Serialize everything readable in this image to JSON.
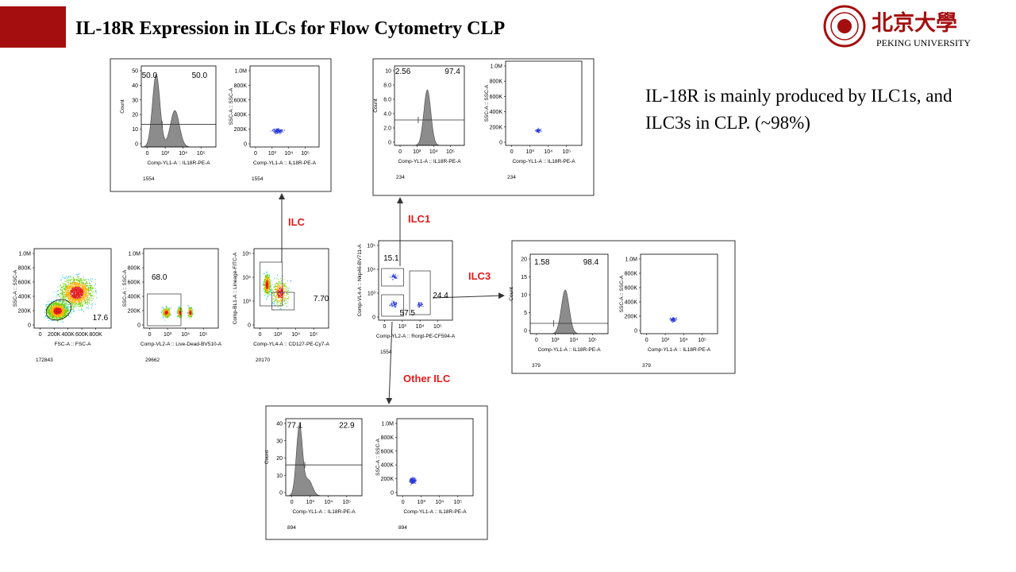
{
  "header": {
    "title": "IL-18R Expression in ILCs for Flow Cytometry CLP",
    "logo_chinese": "北京大學",
    "logo_english": "PEKING UNIVERSITY"
  },
  "note": [
    "IL-18R is mainly produced by ILC1s, and",
    "ILC3s in CLP. (~98%)"
  ],
  "arrows": [
    "ILC",
    "ILC1",
    "ILC3",
    "Other ILC"
  ],
  "plots": [
    {
      "y_label": "SSC-A :: SSC-A",
      "y_ticks": [
        "1.0M",
        "800K",
        "600K",
        "400K",
        "200K",
        "0"
      ],
      "x_ticks": [
        "0",
        "200K",
        "400K",
        "600K",
        "800K"
      ],
      "x_label": "FSC-A :: FSC-A",
      "gates": [
        "17.6"
      ],
      "count": "172843"
    },
    {
      "y_label": "SSC-A :: SSC-A",
      "y_ticks": [
        "1.0M",
        "800K",
        "600K",
        "400K",
        "200K",
        "0"
      ],
      "x_ticks": [
        "0",
        "10³",
        "10⁴",
        "10⁵"
      ],
      "x_label": "Comp-VL2-A :: Live-Dead-BV510-A",
      "gates": [
        "68.0"
      ],
      "count": "29662"
    },
    {
      "y_label": "Comp-BL1-A :: Lineage-FITC-A",
      "y_ticks": [
        "10⁵",
        "10⁴",
        "10³",
        "0"
      ],
      "x_ticks": [
        "0",
        "10³",
        "10⁴",
        "10⁵"
      ],
      "x_label": "Comp-YL4-A :: CD127-PE-Cy7-A",
      "gates": [
        "7.70"
      ],
      "count": "20170"
    },
    {
      "y_label": "Comp-VL4-A :: Nkp46-BV711-A",
      "y_ticks": [
        "10⁵",
        "10⁴",
        "10³",
        "0"
      ],
      "x_ticks": [
        "0",
        "10³",
        "10⁴",
        "10⁵"
      ],
      "x_label": "Comp-YL2-A :: Rorgt-PE-CF594-A",
      "gates": [
        "15.1",
        "24.4",
        "57.5"
      ],
      "count": "1554"
    },
    {
      "y_label": "Count",
      "y_ticks": [
        "50",
        "40",
        "30",
        "20",
        "10",
        "0"
      ],
      "x_ticks": [
        "0",
        "10³",
        "10⁴",
        "10⁵"
      ],
      "x_label": "Comp-YL1-A :: IL18R-PE-A",
      "gates": [
        "50.0",
        "50.0"
      ],
      "count": "1554"
    },
    {
      "y_label": "SSC-A :: SSC-A",
      "y_ticks": [
        "1.0M",
        "800K",
        "600K",
        "400K",
        "200K",
        "0"
      ],
      "x_ticks": [
        "0",
        "10³",
        "10⁴",
        "10⁵"
      ],
      "x_label": "Comp-YL1-A :: IL18R-PE-A",
      "gates": [],
      "count": "1554"
    },
    {
      "y_label": "Count",
      "y_ticks": [
        "10",
        "8.0",
        "6.0",
        "4.0",
        "2.0",
        "0"
      ],
      "x_ticks": [
        "0",
        "10³",
        "10⁴",
        "10⁵"
      ],
      "x_label": "Comp-YL1-A :: IL18R-PE-A",
      "gates": [
        "2.56",
        "97.4"
      ],
      "count": "234"
    },
    {
      "y_label": "SSC-A :: SSC-A",
      "y_ticks": [
        "1.0M",
        "800K",
        "600K",
        "400K",
        "200K",
        "0"
      ],
      "x_ticks": [
        "0",
        "10³",
        "10⁴",
        "10⁵"
      ],
      "x_label": "Comp-YL1-A :: IL18R-PE-A",
      "gates": [],
      "count": "234"
    },
    {
      "y_label": "Count",
      "y_ticks": [
        "20",
        "15",
        "10",
        "5",
        "0"
      ],
      "x_ticks": [
        "0",
        "10³",
        "10⁴",
        "10⁵"
      ],
      "x_label": "Comp-YL1-A :: IL18R-PE-A",
      "gates": [
        "1.58",
        "98.4"
      ],
      "count": "379"
    },
    {
      "y_label": "SSC-A :: SSC-A",
      "y_ticks": [
        "1.0M",
        "800K",
        "600K",
        "400K",
        "200K",
        "0"
      ],
      "x_ticks": [
        "0",
        "10³",
        "10⁴",
        "10⁵"
      ],
      "x_label": "Comp-YL1-A :: IL18R-PE-A",
      "gates": [],
      "count": "379"
    },
    {
      "y_label": "Count",
      "y_ticks": [
        "40",
        "30",
        "20",
        "10",
        "0"
      ],
      "x_ticks": [
        "0",
        "10³",
        "10⁴",
        "10⁵"
      ],
      "x_label": "Comp-YL1-A :: IL18R-PE-A",
      "gates": [
        "77.1",
        "22.9"
      ],
      "count": "894"
    },
    {
      "y_label": "SSC-A :: SSC-A",
      "y_ticks": [
        "1.0M",
        "800K",
        "600K",
        "400K",
        "200K",
        "0"
      ],
      "x_ticks": [
        "0",
        "10³",
        "10⁴",
        "10⁵"
      ],
      "x_label": "Comp-YL1-A :: IL18R-PE-A",
      "gates": [],
      "count": "894"
    }
  ]
}
